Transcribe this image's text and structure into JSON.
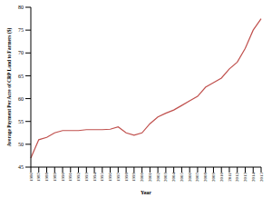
{
  "chart_data": {
    "type": "line",
    "x_label": "Year",
    "y_label": "Average Payment Per Acre of CRP Land to Farmers ($)",
    "categories": [
      "1986",
      "1987",
      "1988",
      "1989",
      "1990",
      "1991",
      "1992",
      "1993",
      "1994",
      "1995",
      "1996",
      "1997",
      "1998",
      "1999",
      "2000",
      "2001",
      "2002",
      "2003",
      "2004",
      "2005",
      "2006",
      "2007",
      "2008",
      "2009",
      "2010",
      "2011",
      "2012",
      "2013",
      "2014",
      "2015"
    ],
    "values": [
      47,
      51,
      51.5,
      52.5,
      53,
      53,
      53,
      53.2,
      53.2,
      53.2,
      53.3,
      53.8,
      52.5,
      52,
      52.5,
      54.5,
      56,
      56.8,
      57.5,
      58.5,
      59.5,
      60.5,
      62.5,
      63.5,
      64.5,
      66.5,
      68,
      71,
      75,
      77.5
    ],
    "color": "#c0504d",
    "ylim": [
      45,
      80
    ],
    "yticks": [
      45,
      50,
      55,
      60,
      65,
      70,
      75,
      80
    ],
    "grid": false
  }
}
